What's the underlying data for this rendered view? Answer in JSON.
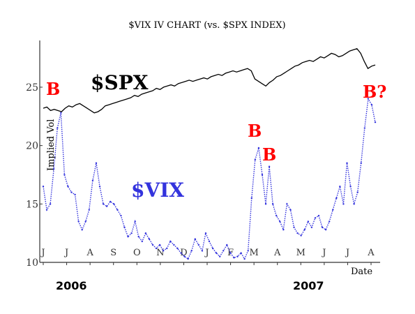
{
  "chart_data": {
    "type": "line",
    "title": "$VIX IV CHART (vs. $SPX INDEX)",
    "ylabel": "Implied Vol",
    "xlabel": "Date",
    "ylim": [
      10,
      29
    ],
    "yticks": [
      10,
      15,
      20,
      25
    ],
    "month_ticks": [
      "J",
      "J",
      "A",
      "S",
      "O",
      "N",
      "D",
      "J",
      "F",
      "M",
      "A",
      "M",
      "J",
      "J",
      "A"
    ],
    "years": [
      "2006",
      "2007"
    ],
    "grid": false,
    "series": [
      {
        "name": "$SPX",
        "color": "#000000",
        "style": "solid",
        "values": [
          23.2,
          23.3,
          23.0,
          23.1,
          23.0,
          22.9,
          23.2,
          23.4,
          23.3,
          23.5,
          23.6,
          23.4,
          23.2,
          23.0,
          22.8,
          22.9,
          23.1,
          23.4,
          23.5,
          23.6,
          23.7,
          23.8,
          23.9,
          24.0,
          24.1,
          24.3,
          24.2,
          24.4,
          24.5,
          24.6,
          24.7,
          24.9,
          24.8,
          25.0,
          25.1,
          25.2,
          25.1,
          25.3,
          25.4,
          25.5,
          25.6,
          25.5,
          25.6,
          25.7,
          25.8,
          25.7,
          25.9,
          26.0,
          26.1,
          26.0,
          26.2,
          26.3,
          26.4,
          26.3,
          26.4,
          26.5,
          26.6,
          26.4,
          25.7,
          25.5,
          25.3,
          25.1,
          25.4,
          25.6,
          25.9,
          26.0,
          26.2,
          26.4,
          26.6,
          26.8,
          26.9,
          27.1,
          27.2,
          27.3,
          27.2,
          27.4,
          27.6,
          27.5,
          27.7,
          27.9,
          27.8,
          27.6,
          27.7,
          27.9,
          28.1,
          28.2,
          28.3,
          27.9,
          27.2,
          26.6,
          26.8,
          26.9
        ]
      },
      {
        "name": "$VIX",
        "color": "#3333dd",
        "style": "dotted",
        "values": [
          16.5,
          14.5,
          15.0,
          18.0,
          21.5,
          22.8,
          17.5,
          16.5,
          16.0,
          15.8,
          13.5,
          12.8,
          13.5,
          14.5,
          17.0,
          18.5,
          16.5,
          15.0,
          14.8,
          15.2,
          15.0,
          14.5,
          14.0,
          13.0,
          12.2,
          12.5,
          13.5,
          12.2,
          11.8,
          12.5,
          12.0,
          11.5,
          11.2,
          11.5,
          11.0,
          11.2,
          11.8,
          11.5,
          11.2,
          10.8,
          10.5,
          10.3,
          11.0,
          12.0,
          11.5,
          11.0,
          12.5,
          11.8,
          11.2,
          10.8,
          10.5,
          11.0,
          11.5,
          10.8,
          10.4,
          10.5,
          10.8,
          10.3,
          11.0,
          15.5,
          18.8,
          19.8,
          17.5,
          15.0,
          18.2,
          15.0,
          14.0,
          13.5,
          12.8,
          15.0,
          14.5,
          13.0,
          12.5,
          12.3,
          12.8,
          13.5,
          13.0,
          13.8,
          14.0,
          13.0,
          12.8,
          13.5,
          14.5,
          15.5,
          16.5,
          15.0,
          18.5,
          16.5,
          15.0,
          16.0,
          18.5,
          21.5,
          24.0,
          23.5,
          22.0
        ]
      }
    ],
    "annotations": [
      {
        "text": "B",
        "style": "red"
      },
      {
        "text": "$SPX",
        "style": "spx"
      },
      {
        "text": "B",
        "style": "red"
      },
      {
        "text": "B",
        "style": "red"
      },
      {
        "text": "B?",
        "style": "red"
      },
      {
        "text": "$VIX",
        "style": "vix"
      }
    ]
  }
}
